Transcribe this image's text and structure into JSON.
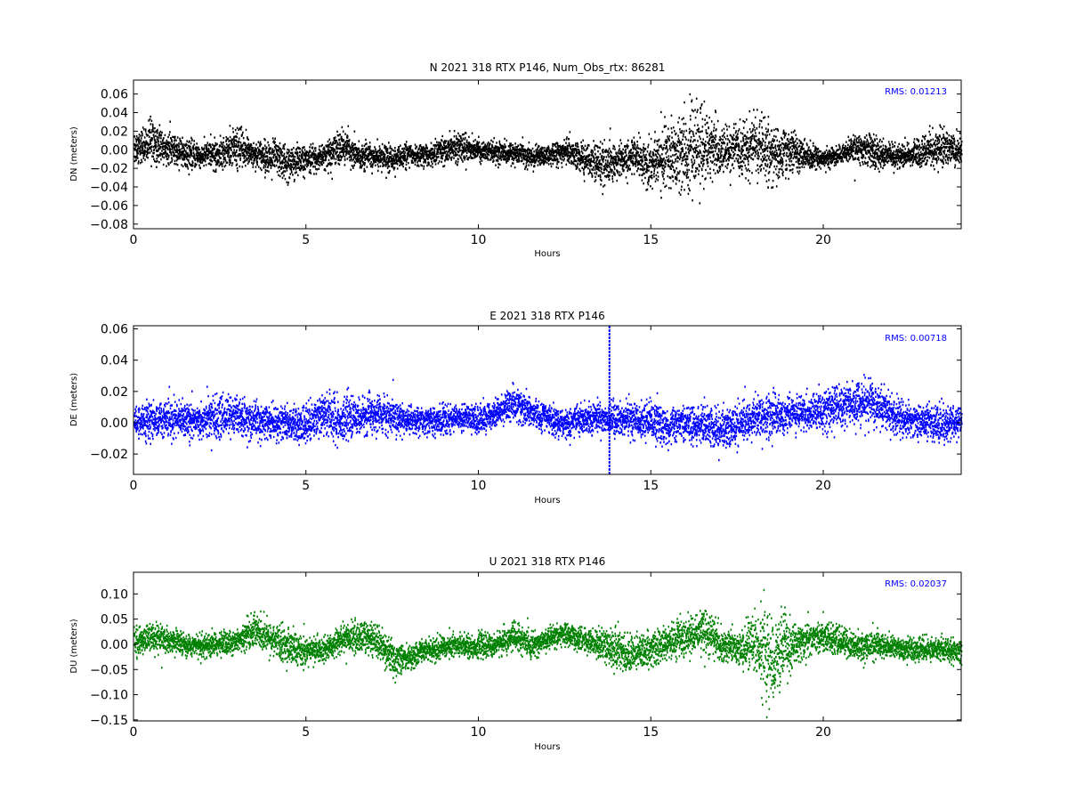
{
  "chart_data": [
    {
      "type": "scatter",
      "title": "N 2021 318 RTX  P146, Num_Obs_rtx: 86281",
      "xlabel": "Hours",
      "ylabel": "DN (meters)",
      "xlim": [
        0,
        24
      ],
      "ylim": [
        -0.085,
        0.075
      ],
      "xticks": [
        0,
        5,
        10,
        15,
        20
      ],
      "xtick_labels": [
        "0",
        "5",
        "10",
        "15",
        "20"
      ],
      "yticks": [
        0.06,
        0.04,
        0.02,
        0.0,
        -0.02,
        -0.04,
        -0.06,
        -0.08
      ],
      "ytick_labels": [
        "0.06",
        "0.04",
        "0.02",
        "0.00",
        "−0.02",
        "−0.04",
        "−0.06",
        "−0.08"
      ],
      "annotation": "RMS:  0.01213",
      "color": "#000000",
      "series": [
        {
          "x": [
            0,
            0.5,
            1,
            1.5,
            2,
            2.5,
            3,
            3.5,
            4,
            4.5,
            5,
            5.5,
            6,
            6.5,
            7,
            7.5,
            8,
            8.5,
            9,
            9.5,
            10,
            10.5,
            11,
            11.5,
            12,
            12.5,
            13,
            13.5,
            14,
            14.5,
            15,
            15.5,
            16,
            16.5,
            17,
            17.5,
            18,
            18.5,
            19,
            19.5,
            20,
            20.5,
            21,
            21.5,
            22,
            22.5,
            23,
            23.5,
            24
          ],
          "y": [
            0.002,
            0.008,
            0.002,
            -0.004,
            -0.006,
            -0.004,
            0.002,
            -0.004,
            -0.008,
            -0.014,
            -0.01,
            -0.008,
            0.004,
            -0.006,
            -0.008,
            -0.01,
            -0.006,
            -0.006,
            0.0,
            0.004,
            0.0,
            -0.002,
            -0.004,
            -0.008,
            -0.006,
            -0.002,
            -0.008,
            -0.016,
            -0.012,
            -0.006,
            -0.016,
            -0.004,
            -0.002,
            0.004,
            -0.004,
            0.0,
            0.004,
            -0.006,
            -0.002,
            -0.006,
            -0.01,
            -0.004,
            0.002,
            -0.002,
            -0.008,
            -0.006,
            0.0,
            0.002,
            -0.002
          ],
          "spread": [
            0.016,
            0.022,
            0.014,
            0.012,
            0.012,
            0.014,
            0.02,
            0.012,
            0.016,
            0.018,
            0.014,
            0.012,
            0.016,
            0.012,
            0.012,
            0.012,
            0.01,
            0.01,
            0.012,
            0.014,
            0.01,
            0.01,
            0.01,
            0.01,
            0.01,
            0.012,
            0.014,
            0.02,
            0.016,
            0.016,
            0.022,
            0.032,
            0.036,
            0.04,
            0.024,
            0.02,
            0.028,
            0.03,
            0.02,
            0.012,
            0.01,
            0.008,
            0.014,
            0.016,
            0.01,
            0.012,
            0.016,
            0.018,
            0.014
          ]
        }
      ]
    },
    {
      "type": "scatter",
      "title": "E 2021 318 RTX  P146",
      "xlabel": "Hours",
      "ylabel": "DE (meters)",
      "xlim": [
        0,
        24
      ],
      "ylim": [
        -0.033,
        0.062
      ],
      "xticks": [
        0,
        5,
        10,
        15,
        20
      ],
      "xtick_labels": [
        "0",
        "5",
        "10",
        "15",
        "20"
      ],
      "yticks": [
        0.06,
        0.04,
        0.02,
        0.0,
        -0.02
      ],
      "ytick_labels": [
        "0.06",
        "0.04",
        "0.02",
        "0.00",
        "−0.02"
      ],
      "annotation": "RMS:  0.00718",
      "color": "#0000ff",
      "series": [
        {
          "x": [
            0,
            0.5,
            1,
            1.5,
            2,
            2.5,
            3,
            3.5,
            4,
            4.5,
            5,
            5.5,
            6,
            6.5,
            7,
            7.5,
            8,
            8.5,
            9,
            9.5,
            10,
            10.5,
            11,
            11.5,
            12,
            12.5,
            13,
            13.5,
            14,
            14.5,
            15,
            15.5,
            16,
            16.5,
            17,
            17.5,
            18,
            18.5,
            19,
            19.5,
            20,
            20.5,
            21,
            21.5,
            22,
            22.5,
            23,
            23.5,
            24
          ],
          "y": [
            0.0,
            0.002,
            0.002,
            0.002,
            0.002,
            0.004,
            0.004,
            0.002,
            0.0,
            0.0,
            -0.002,
            0.006,
            0.002,
            0.004,
            0.006,
            0.004,
            0.002,
            0.0,
            0.002,
            0.004,
            0.002,
            0.006,
            0.012,
            0.006,
            0.002,
            0.0,
            0.002,
            0.004,
            0.002,
            0.002,
            0.0,
            -0.002,
            0.0,
            -0.002,
            -0.004,
            -0.002,
            0.004,
            0.004,
            0.006,
            0.006,
            0.008,
            0.01,
            0.012,
            0.012,
            0.004,
            0.002,
            0.0,
            0.0,
            0.0
          ],
          "spread": [
            0.01,
            0.01,
            0.01,
            0.01,
            0.01,
            0.012,
            0.012,
            0.01,
            0.01,
            0.01,
            0.01,
            0.014,
            0.012,
            0.01,
            0.01,
            0.01,
            0.008,
            0.008,
            0.008,
            0.008,
            0.008,
            0.008,
            0.01,
            0.008,
            0.008,
            0.008,
            0.008,
            0.008,
            0.01,
            0.01,
            0.01,
            0.01,
            0.01,
            0.01,
            0.012,
            0.01,
            0.012,
            0.012,
            0.01,
            0.01,
            0.012,
            0.012,
            0.012,
            0.012,
            0.01,
            0.01,
            0.01,
            0.01,
            0.01
          ]
        }
      ],
      "spike": {
        "x": 13.8,
        "ymin": -0.033,
        "ymax": 0.062
      }
    },
    {
      "type": "scatter",
      "title": "U 2021 318 RTX  P146",
      "xlabel": "Hours",
      "ylabel": "DU (meters)",
      "xlim": [
        0,
        24
      ],
      "ylim": [
        -0.152,
        0.143
      ],
      "xticks": [
        0,
        5,
        10,
        15,
        20
      ],
      "xtick_labels": [
        "0",
        "5",
        "10",
        "15",
        "20"
      ],
      "yticks": [
        0.1,
        0.05,
        0.0,
        -0.05,
        -0.1,
        -0.15
      ],
      "ytick_labels": [
        "0.10",
        "0.05",
        "0.00",
        "−0.05",
        "−0.10",
        "−0.15"
      ],
      "annotation": "RMS:  0.02037",
      "color": "#008000",
      "series": [
        {
          "x": [
            0,
            0.5,
            1,
            1.5,
            2,
            2.5,
            3,
            3.5,
            4,
            4.5,
            5,
            5.5,
            6,
            6.5,
            7,
            7.5,
            8,
            8.5,
            9,
            9.5,
            10,
            10.5,
            11,
            11.5,
            12,
            12.5,
            13,
            13.5,
            14,
            14.5,
            15,
            15.5,
            16,
            16.5,
            17,
            17.5,
            18,
            18.5,
            19,
            19.5,
            20,
            20.5,
            21,
            21.5,
            22,
            22.5,
            23,
            23.5,
            24
          ],
          "y": [
            0.005,
            0.015,
            0.01,
            0.0,
            -0.005,
            0.0,
            0.01,
            0.03,
            0.01,
            -0.005,
            -0.015,
            -0.01,
            0.01,
            0.015,
            0.01,
            -0.03,
            -0.025,
            -0.01,
            -0.005,
            0.0,
            -0.005,
            0.0,
            0.015,
            0.0,
            0.01,
            0.02,
            0.01,
            0.0,
            -0.01,
            -0.02,
            -0.01,
            0.005,
            0.01,
            0.03,
            0.0,
            -0.01,
            0.0,
            -0.03,
            -0.005,
            0.01,
            0.015,
            0.005,
            -0.005,
            0.0,
            -0.005,
            -0.01,
            -0.01,
            -0.01,
            -0.015
          ],
          "spread": [
            0.025,
            0.025,
            0.02,
            0.02,
            0.02,
            0.02,
            0.02,
            0.03,
            0.03,
            0.03,
            0.025,
            0.02,
            0.025,
            0.03,
            0.03,
            0.03,
            0.02,
            0.02,
            0.02,
            0.02,
            0.02,
            0.02,
            0.025,
            0.02,
            0.02,
            0.02,
            0.02,
            0.025,
            0.035,
            0.03,
            0.03,
            0.03,
            0.035,
            0.04,
            0.03,
            0.03,
            0.06,
            0.09,
            0.04,
            0.03,
            0.025,
            0.025,
            0.025,
            0.025,
            0.02,
            0.02,
            0.02,
            0.02,
            0.02
          ]
        }
      ]
    }
  ]
}
